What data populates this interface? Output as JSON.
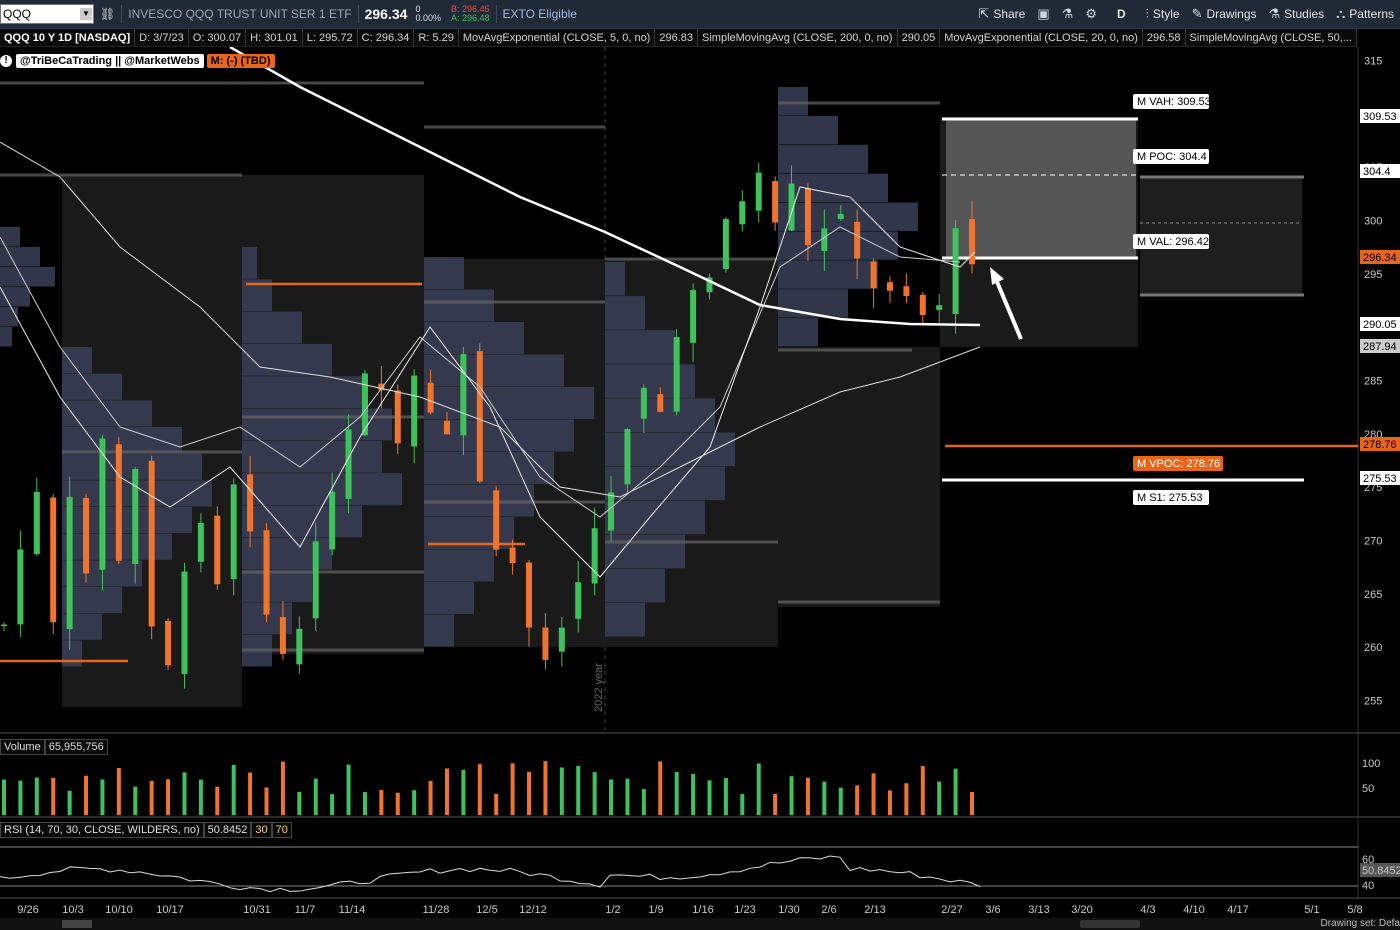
{
  "toolbar": {
    "symbol": "QQQ",
    "description": "INVESCO QQQ TRUST UNIT SER 1 ETF",
    "last": "296.34",
    "change": "0",
    "change_pct": "0.00%",
    "bid": "B: 296.45",
    "ask": "A: 296.48",
    "exto": "EXTO Eligible",
    "share": "Share",
    "timeframe": "D",
    "style": "Style",
    "drawings": "Drawings",
    "studies": "Studies",
    "patterns": "Patterns"
  },
  "studybar": {
    "title": "QQQ 10 Y 1D [NASDAQ]",
    "date": "D: 3/7/23",
    "open": "O: 300.07",
    "high": "H: 301.01",
    "low": "L: 295.72",
    "close": "C: 296.34",
    "range": "R: 5.29",
    "ema5": "MovAvgExponential (CLOSE, 5, 0, no)",
    "ema5_val": "296.83",
    "sma200": "SimpleMovingAvg (CLOSE, 200, 0, no)",
    "sma200_val": "290.05",
    "ema20": "MovAvgExponential (CLOSE, 20, 0, no)",
    "ema20_val": "296.58",
    "sma50": "SimpleMovingAvg (CLOSE, 50,..."
  },
  "brand": {
    "warn": "!",
    "tag": "@TriBeCaTrading || @MarketWebs",
    "market": "M: (-)  (TBD)"
  },
  "levels": {
    "vah": "M VAH: 309.53",
    "poc": "M POC: 304.4",
    "val": "M VAL: 296.42",
    "vpoc": "M VPOC: 278.76",
    "s1": "M S1: 275.53"
  },
  "price_axis": {
    "ticks": [
      "315",
      "305",
      "300",
      "295",
      "285",
      "280",
      "275",
      "270",
      "265",
      "260",
      "255"
    ],
    "tags": [
      {
        "text": "309.53",
        "bg": "#ffffff",
        "fg": "#000000"
      },
      {
        "text": "304.4",
        "bg": "#ffffff",
        "fg": "#000000"
      },
      {
        "text": "296.34",
        "bg": "#e8651a",
        "fg": "#000000"
      },
      {
        "text": "290.05",
        "bg": "#ffffff",
        "fg": "#000000"
      },
      {
        "text": "287.94",
        "bg": "#cccccc",
        "fg": "#000000"
      },
      {
        "text": "278.76",
        "bg": "#e8651a",
        "fg": "#000000"
      },
      {
        "text": "275.53",
        "bg": "#ffffff",
        "fg": "#000000"
      }
    ]
  },
  "date_axis": [
    "9/26",
    "10/3",
    "10/10",
    "10/17",
    "10/31",
    "11/7",
    "11/14",
    "11/28",
    "12/5",
    "12/12",
    "1/2",
    "1/9",
    "1/16",
    "1/23",
    "1/30",
    "2/6",
    "2/13",
    "2/27",
    "3/6",
    "3/13",
    "3/20",
    "4/3",
    "4/10",
    "4/17",
    "5/1",
    "5/8"
  ],
  "year_label": "2022 year",
  "volume": {
    "label": "Volume",
    "value": "65,955,756",
    "ticks": [
      "100",
      "50"
    ]
  },
  "rsi": {
    "label": "RSI (14, 70, 30, CLOSE, WILDERS, no)",
    "value": "50.8452",
    "ob": "30",
    "os": "70",
    "ticks": [
      "60",
      "40"
    ],
    "tag": "50.8452"
  },
  "status": {
    "drawing_set": "Drawing set: Defa"
  },
  "colors": {
    "up": "#3fc25b",
    "down": "#f0742e",
    "accent": "#e8651a",
    "toolbar": "#1f2a36",
    "profile": "#3b3f58"
  }
}
